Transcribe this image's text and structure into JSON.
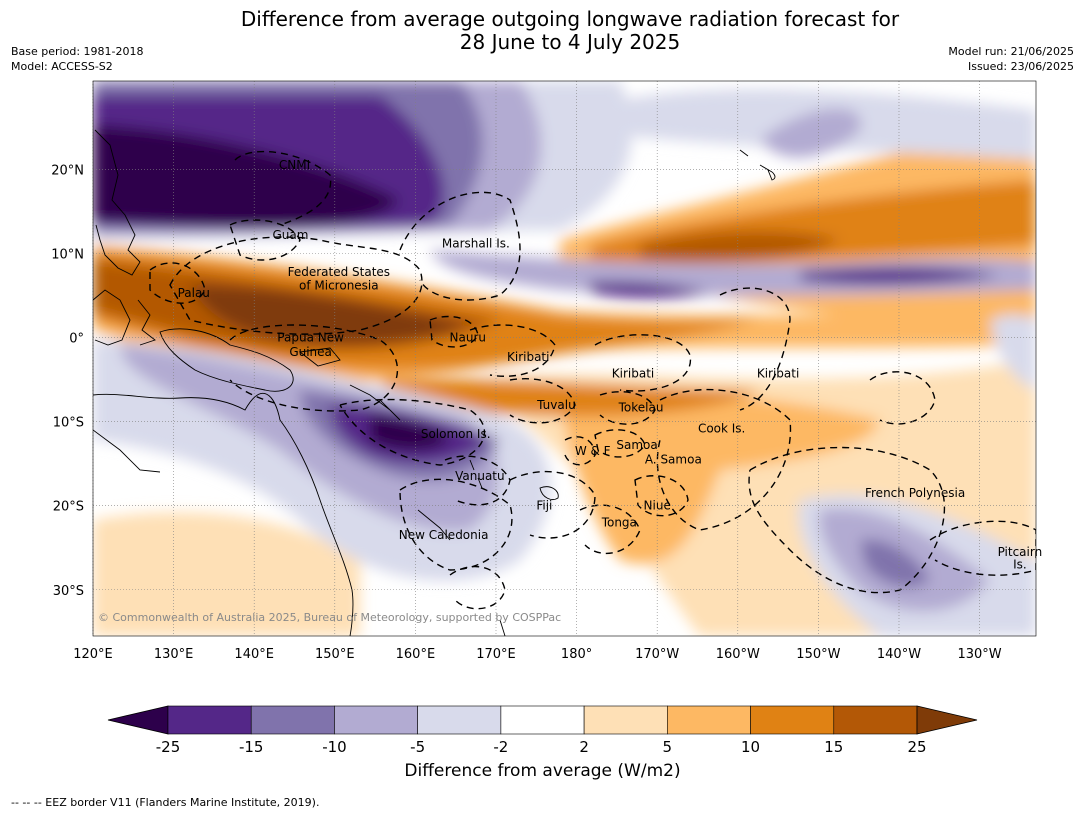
{
  "title_line1": "Difference from average outgoing longwave radiation forecast for",
  "title_line2": "28 June to 4 July 2025",
  "base_period": "Base period: 1981-2018",
  "model": "Model: ACCESS-S2",
  "model_run": "Model run: 21/06/2025",
  "issued": "Issued: 23/06/2025",
  "copyright": "© Commonwealth of Australia 2025, Bureau of Meteorology, supported by COSPPac",
  "lon_labels": [
    "120°E",
    "130°E",
    "140°E",
    "150°E",
    "160°E",
    "170°E",
    "180°",
    "170°W",
    "160°W",
    "150°W",
    "140°W",
    "130°W"
  ],
  "lat_labels": [
    "20°N",
    "10°N",
    "0°",
    "10°S",
    "20°S",
    "30°S"
  ],
  "regions": [
    {
      "name": "CNMI",
      "lon": 145,
      "lat": 20.5
    },
    {
      "name": "Guam",
      "lon": 144.5,
      "lat": 12.2
    },
    {
      "name": "Marshall Is.",
      "lon": 167.5,
      "lat": 11.2
    },
    {
      "name": "Federated States",
      "lon": 150.5,
      "lat": 7.8
    },
    {
      "name": "of Micronesia",
      "lon": 150.5,
      "lat": 6.2
    },
    {
      "name": "Palau",
      "lon": 132.5,
      "lat": 5.3
    },
    {
      "name": "Papua New",
      "lon": 147,
      "lat": 0
    },
    {
      "name": "Guinea",
      "lon": 147,
      "lat": -1.7
    },
    {
      "name": "Nauru",
      "lon": 166.5,
      "lat": 0
    },
    {
      "name": "Kiribati",
      "lon": 174,
      "lat": -2.3
    },
    {
      "name": "Kiribati",
      "lon": 187,
      "lat": -4.3
    },
    {
      "name": "Kiribati",
      "lon": 205,
      "lat": -4.3
    },
    {
      "name": "Tuvalu",
      "lon": 177.5,
      "lat": -8
    },
    {
      "name": "Tokelau",
      "lon": 188,
      "lat": -8.3
    },
    {
      "name": "Cook Is.",
      "lon": 198,
      "lat": -10.8
    },
    {
      "name": "Solomon Is.",
      "lon": 165,
      "lat": -11.5
    },
    {
      "name": "Samoa",
      "lon": 187.5,
      "lat": -12.8
    },
    {
      "name": "W & F",
      "lon": 182,
      "lat": -13.5
    },
    {
      "name": "A. Samoa",
      "lon": 192,
      "lat": -14.5
    },
    {
      "name": "Vanuatu",
      "lon": 168,
      "lat": -16.5
    },
    {
      "name": "French Polynesia",
      "lon": 222,
      "lat": -18.5
    },
    {
      "name": "Fiji",
      "lon": 176,
      "lat": -20
    },
    {
      "name": "Niue",
      "lon": 190,
      "lat": -20
    },
    {
      "name": "Tonga",
      "lon": 185.3,
      "lat": -22
    },
    {
      "name": "New Caledonia",
      "lon": 163.5,
      "lat": -23.5
    },
    {
      "name": "Pitcairn",
      "lon": 235,
      "lat": -25.5
    },
    {
      "name": "Is.",
      "lon": 235,
      "lat": -27
    }
  ],
  "colorbar": {
    "label": "Difference from average (W/m2)",
    "ticks": [
      "-25",
      "-15",
      "-10",
      "-5",
      "-2",
      "2",
      "5",
      "10",
      "15",
      "25"
    ],
    "colors": [
      "#2d004b",
      "#542788",
      "#8073ac",
      "#b2abd2",
      "#d8daeb",
      "#ffffff",
      "#fee0b6",
      "#fdb863",
      "#e08214",
      "#b35806",
      "#7f3b08"
    ]
  },
  "footer": "-- -- -- EEZ border V11 (Flanders Marine Institute, 2019)."
}
